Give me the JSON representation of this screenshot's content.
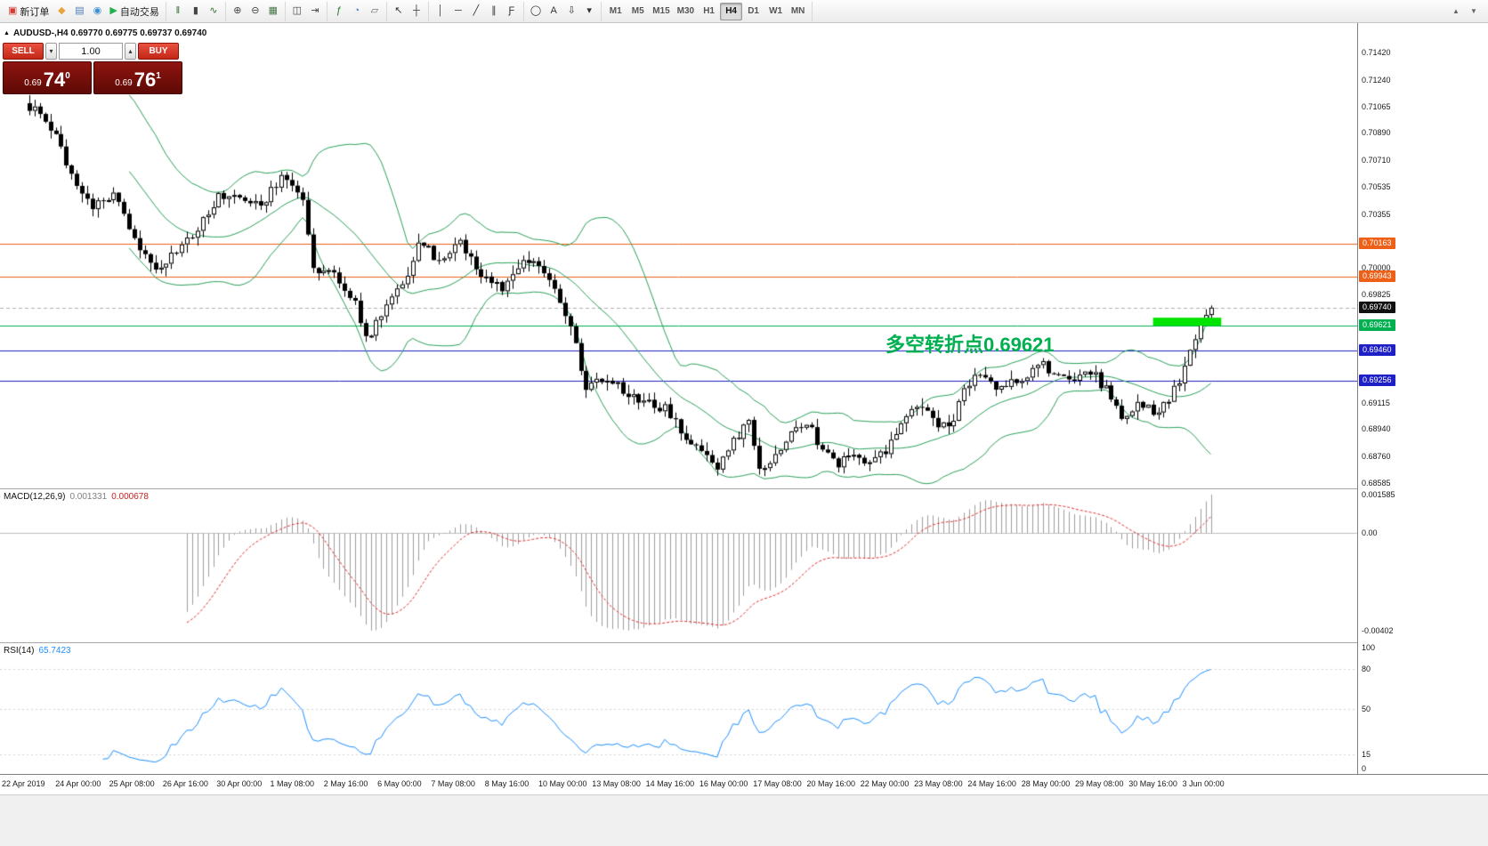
{
  "toolbar": {
    "groups": [
      {
        "items": [
          {
            "name": "new-order",
            "glyph": "▣",
            "color": "#d23b2f",
            "label": "新订单"
          },
          {
            "name": "mql5-market",
            "glyph": "◆",
            "color": "#e8a33d"
          },
          {
            "name": "charts",
            "glyph": "▤",
            "color": "#4a7ebb"
          },
          {
            "name": "community",
            "glyph": "◉",
            "color": "#3b8fd4"
          },
          {
            "name": "autotrade",
            "glyph": "▶",
            "color": "#1faf4b",
            "label": "自动交易"
          }
        ]
      },
      {
        "items": [
          {
            "name": "chart-bars",
            "glyph": "‖",
            "color": "#2d6e2d"
          },
          {
            "name": "chart-candles",
            "glyph": "▮",
            "color": "#444444"
          },
          {
            "name": "chart-line",
            "glyph": "∿",
            "color": "#2d6e2d"
          }
        ]
      },
      {
        "items": [
          {
            "name": "zoom-in",
            "glyph": "⊕",
            "color": "#444444"
          },
          {
            "name": "zoom-out",
            "glyph": "⊖",
            "color": "#444444"
          },
          {
            "name": "auto-scroll",
            "glyph": "▦",
            "color": "#447744"
          }
        ]
      },
      {
        "items": [
          {
            "name": "tile-windows",
            "glyph": "◫",
            "color": "#444444"
          },
          {
            "name": "chart-shift",
            "glyph": "⇥",
            "color": "#444444"
          }
        ]
      },
      {
        "items": [
          {
            "name": "indicators",
            "glyph": "ƒ",
            "color": "#1a7a1a"
          },
          {
            "name": "objects-list",
            "glyph": "◔",
            "color": "#4a7ebb"
          },
          {
            "name": "templates",
            "glyph": "▱",
            "color": "#666666"
          }
        ]
      },
      {
        "items": [
          {
            "name": "cursor",
            "glyph": "↖",
            "color": "#333333"
          },
          {
            "name": "crosshair",
            "glyph": "┼",
            "color": "#333333"
          }
        ]
      },
      {
        "items": [
          {
            "name": "vertical-line",
            "glyph": "│",
            "color": "#333333"
          },
          {
            "name": "horizontal-line",
            "glyph": "─",
            "color": "#333333"
          },
          {
            "name": "trendline",
            "glyph": "╱",
            "color": "#333333"
          },
          {
            "name": "equidistant-channel",
            "glyph": "∥",
            "color": "#333333"
          },
          {
            "name": "fibonacci",
            "glyph": "Ƒ",
            "color": "#333333"
          }
        ]
      },
      {
        "items": [
          {
            "name": "shapes",
            "glyph": "◯",
            "color": "#333333"
          },
          {
            "name": "text",
            "glyph": "A",
            "color": "#333333"
          },
          {
            "name": "arrows",
            "glyph": "⇩",
            "color": "#333333"
          },
          {
            "name": "objects-dropdown",
            "glyph": "▾",
            "color": "#333333"
          }
        ]
      }
    ],
    "timeframes": [
      "M1",
      "M5",
      "M15",
      "M30",
      "H1",
      "H4",
      "D1",
      "W1",
      "MN"
    ],
    "active_timeframe": "H4",
    "right_items": [
      {
        "name": "scroll-up",
        "glyph": "▲",
        "color": "#666666"
      },
      {
        "name": "scroll-down",
        "glyph": "▼",
        "color": "#666666"
      }
    ]
  },
  "trade_panel": {
    "sell_label": "SELL",
    "buy_label": "BUY",
    "volume": "1.00",
    "volume_down_glyph": "▾",
    "volume_up_glyph": "▴",
    "sell_price": {
      "prefix": "0.69",
      "big": "74",
      "sup": "0"
    },
    "buy_price": {
      "prefix": "0.69",
      "big": "76",
      "sup": "1"
    }
  },
  "chart": {
    "expand_icon": "▲",
    "symbol_header": "AUDUSD-,H4  0.69770 0.69775 0.69737 0.69740",
    "annotation": {
      "text": "多空转折点0.69621",
      "color": "#00b050"
    }
  },
  "macd_panel": {
    "label": "MACD(12,26,9)",
    "main_value": "0.001331",
    "signal_value": "0.000678",
    "scale": [
      "0.001585",
      "0.00",
      "-0.00402"
    ]
  },
  "rsi_panel": {
    "label": "RSI(14)",
    "value": "65.7423",
    "scale": [
      "100",
      "80",
      "50",
      "15",
      "0"
    ]
  },
  "price_axis": {
    "ticks": [
      "0.71420",
      "0.71240",
      "0.71065",
      "0.70890",
      "0.70710",
      "0.70535",
      "0.70355",
      "0.70000",
      "0.69825",
      "0.69115",
      "0.68940",
      "0.68760",
      "0.68585"
    ],
    "badges": [
      {
        "text": "0.70163",
        "color": "#ee6018"
      },
      {
        "text": "0.69943",
        "color": "#ee6018"
      },
      {
        "text": "0.69740",
        "color": "#111111"
      },
      {
        "text": "0.69621",
        "color": "#00b050"
      },
      {
        "text": "0.69460",
        "color": "#1f1fc8"
      },
      {
        "text": "0.69256",
        "color": "#1f1fc8"
      }
    ]
  },
  "time_axis": {
    "labels": [
      "22 Apr 2019",
      "24 Apr 00:00",
      "25 Apr 08:00",
      "26 Apr 16:00",
      "30 Apr 00:00",
      "1 May 08:00",
      "2 May 16:00",
      "6 May 00:00",
      "7 May 08:00",
      "8 May 16:00",
      "10 May 00:00",
      "13 May 08:00",
      "14 May 16:00",
      "16 May 00:00",
      "17 May 08:00",
      "20 May 16:00",
      "22 May 00:00",
      "23 May 08:00",
      "24 May 16:00",
      "28 May 00:00",
      "29 May 08:00",
      "30 May 16:00",
      "3 Jun 00:00"
    ]
  },
  "chart_data": {
    "type": "candlestick",
    "symbol": "AUDUSD-",
    "timeframe": "H4",
    "ohlc_display": {
      "open": "0.69770",
      "high": "0.69775",
      "low": "0.69737",
      "close": "0.69740"
    },
    "bars_total": 226,
    "y_axis": {
      "min": 0.68585,
      "max": 0.7142
    },
    "price_path": {
      "bar": [
        0,
        4,
        8,
        12,
        16,
        20,
        24,
        28,
        32,
        36,
        40,
        44,
        48,
        52,
        54,
        58,
        62,
        64,
        68,
        72,
        74,
        78,
        82,
        86,
        90,
        93,
        96,
        100,
        103,
        106,
        110,
        114,
        118,
        121,
        125,
        128,
        131,
        134,
        137,
        139,
        142,
        145,
        148,
        151,
        154,
        157,
        160,
        163,
        166,
        169,
        172,
        175,
        178,
        181,
        184,
        187,
        190,
        193,
        196,
        199,
        202,
        205,
        208,
        211,
        214,
        217,
        219,
        221,
        223,
        225
      ],
      "close": [
        0.7106,
        0.7094,
        0.706,
        0.7042,
        0.7049,
        0.702,
        0.6997,
        0.701,
        0.7028,
        0.7046,
        0.7049,
        0.7042,
        0.7058,
        0.7045,
        0.7,
        0.6995,
        0.698,
        0.6953,
        0.6975,
        0.6998,
        0.7018,
        0.7005,
        0.7016,
        0.6995,
        0.6988,
        0.7,
        0.7008,
        0.6985,
        0.696,
        0.6922,
        0.6928,
        0.6915,
        0.691,
        0.6907,
        0.689,
        0.6878,
        0.6868,
        0.6885,
        0.6903,
        0.6866,
        0.6875,
        0.6892,
        0.69,
        0.688,
        0.6872,
        0.6876,
        0.687,
        0.688,
        0.6898,
        0.6912,
        0.69,
        0.6893,
        0.692,
        0.6932,
        0.692,
        0.6926,
        0.693,
        0.6936,
        0.6928,
        0.6924,
        0.6932,
        0.692,
        0.6902,
        0.6912,
        0.6905,
        0.6915,
        0.6925,
        0.6945,
        0.6962,
        0.6974
      ]
    },
    "horizontal_lines": [
      {
        "name": "resistance-upper",
        "price": 0.70163,
        "color": "#ee6018",
        "style": "solid"
      },
      {
        "name": "resistance-lower",
        "price": 0.69943,
        "color": "#ee6018",
        "style": "solid"
      },
      {
        "name": "bid-line",
        "price": 0.6974,
        "color": "#b0b0b0",
        "style": "dashed"
      },
      {
        "name": "pivot-line",
        "price": 0.69621,
        "color": "#00b050",
        "style": "solid"
      },
      {
        "name": "support-upper",
        "price": 0.6946,
        "color": "#1f1fc8",
        "style": "solid"
      },
      {
        "name": "support-lower",
        "price": 0.69256,
        "color": "#1f1fc8",
        "style": "solid"
      }
    ],
    "highlight_zone": {
      "price": 0.69621,
      "color": "#00e400",
      "bar_start": 214,
      "bar_end": 227
    },
    "indicators": {
      "bollinger": {
        "period": 20,
        "deviation": 2,
        "color": "#2aa05a"
      },
      "macd": {
        "fast": 12,
        "slow": 26,
        "signal": 9,
        "values": [
          0.001331,
          0.000678
        ],
        "scale_max": 0.001585,
        "scale_min": -0.00402,
        "hist_color": "#9e9e9e",
        "signal_color": "#e03030"
      },
      "rsi": {
        "period": 14,
        "value": 65.7423,
        "levels": [
          80,
          50,
          15
        ],
        "color": "#1e90ff"
      }
    }
  }
}
